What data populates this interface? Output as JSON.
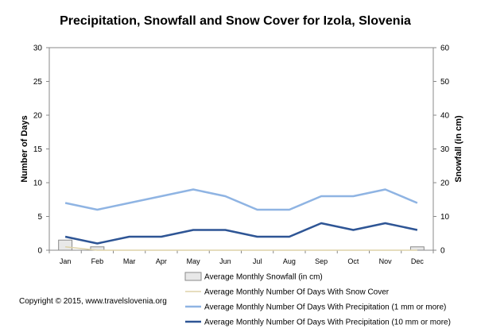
{
  "chart_data": {
    "type": "bar",
    "title": "Precipitation, Snowfall and Snow Cover for Izola, Slovenia",
    "xlabel": "",
    "ylabel": "Number of Days",
    "y2label": "Snowfall (in cm)",
    "ylim": [
      0,
      30
    ],
    "y2lim": [
      0,
      60
    ],
    "yticks": [
      0,
      5,
      10,
      15,
      20,
      25,
      30
    ],
    "y2ticks": [
      0,
      10,
      20,
      30,
      40,
      50,
      60
    ],
    "grid": false,
    "legend_position": "bottom-right",
    "categories": [
      "Jan",
      "Feb",
      "Mar",
      "Apr",
      "May",
      "Jun",
      "Jul",
      "Aug",
      "Sep",
      "Oct",
      "Nov",
      "Dec"
    ],
    "series": [
      {
        "name": "Average Monthly Snowfall (in cm)",
        "type": "bar",
        "axis": "right",
        "color": "#e8e8e8",
        "stroke": "#8a8a8a",
        "values": [
          3,
          1,
          0,
          0,
          0,
          0,
          0,
          0,
          0,
          0,
          0,
          1
        ]
      },
      {
        "name": "Average Monthly Number Of Days With Snow Cover",
        "type": "line",
        "axis": "left",
        "color": "#ddd2a8",
        "values": [
          0.5,
          0,
          0,
          0,
          0,
          0,
          0,
          0,
          0,
          0,
          0,
          0
        ]
      },
      {
        "name": "Average Monthly Number Of Days With Precipitation (1 mm or more)",
        "type": "line",
        "axis": "left",
        "color": "#8fb4e3",
        "values": [
          7,
          6,
          7,
          8,
          9,
          8,
          6,
          6,
          8,
          8,
          9,
          7
        ]
      },
      {
        "name": "Average Monthly Number Of Days With Precipitation (10 mm or more)",
        "type": "line",
        "axis": "left",
        "color": "#2e5595",
        "values": [
          2,
          1,
          2,
          2,
          3,
          3,
          2,
          2,
          4,
          3,
          4,
          3
        ]
      }
    ]
  },
  "copyright": "Copyright © 2015, www.travelslovenia.org"
}
